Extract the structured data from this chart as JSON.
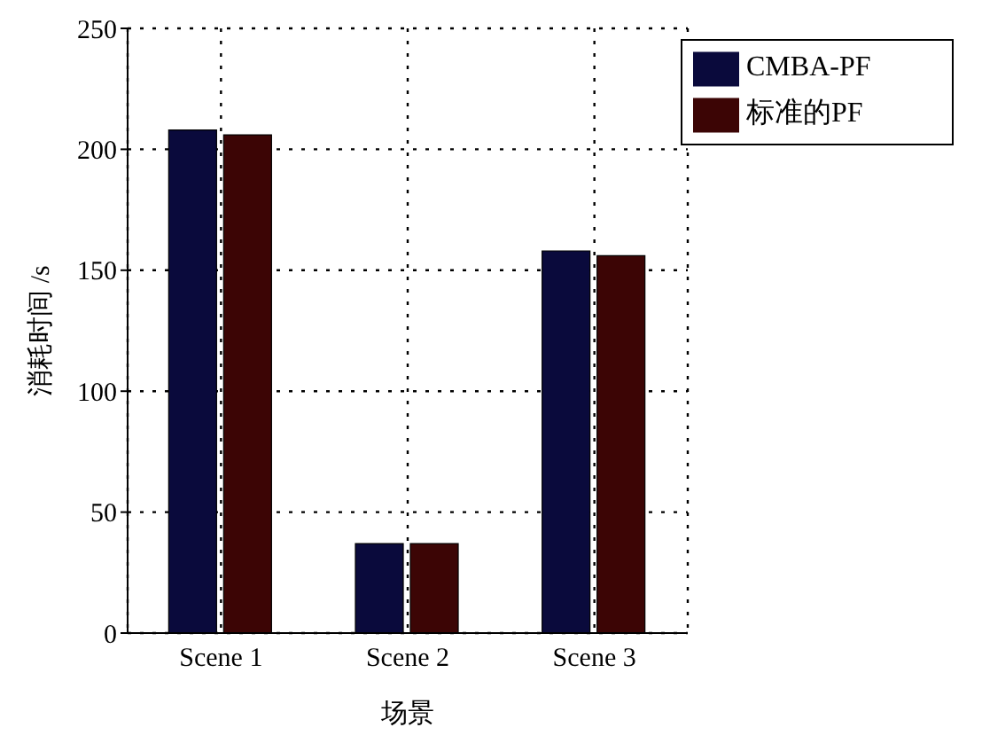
{
  "chart_data": {
    "type": "bar",
    "xlabel": "场景",
    "ylabel": "消耗时间 /s",
    "categories": [
      "Scene 1",
      "Scene 2",
      "Scene 3"
    ],
    "series": [
      {
        "name": "CMBA-PF",
        "color": "#0a0a3c",
        "values": [
          208,
          37,
          158
        ]
      },
      {
        "name": "标准的PF",
        "color": "#3c0505",
        "values": [
          206,
          37,
          156
        ]
      }
    ],
    "ylim": [
      0,
      250
    ],
    "yticks": [
      0,
      50,
      100,
      150,
      200,
      250
    ],
    "grid": true,
    "legend": "top right"
  }
}
